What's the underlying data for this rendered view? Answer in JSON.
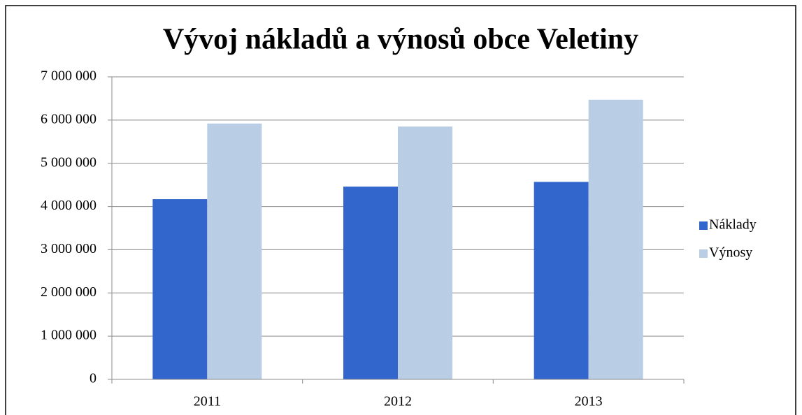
{
  "chart_data": {
    "type": "bar",
    "title": "Vývoj nákladů a výnosů obce Veletiny",
    "categories": [
      "2011",
      "2012",
      "2013"
    ],
    "series": [
      {
        "name": "Náklady",
        "color": "#3366cc",
        "values": [
          4170000,
          4460000,
          4570000
        ]
      },
      {
        "name": "Výnosy",
        "color": "#b9cde5",
        "values": [
          5920000,
          5850000,
          6470000
        ]
      }
    ],
    "ylim": [
      0,
      7000000
    ],
    "yticks": [
      0,
      {
        "value": 1000000,
        "label": "1 000 000"
      },
      {
        "value": 2000000,
        "label": "2 000 000"
      },
      {
        "value": 3000000,
        "label": "3 000 000"
      },
      {
        "value": 4000000,
        "label": "4 000 000"
      },
      {
        "value": 5000000,
        "label": "5 000 000"
      },
      {
        "value": 6000000,
        "label": "6 000 000"
      },
      {
        "value": 7000000,
        "label": "7 000 000"
      }
    ],
    "grid": true,
    "legend": "right"
  }
}
